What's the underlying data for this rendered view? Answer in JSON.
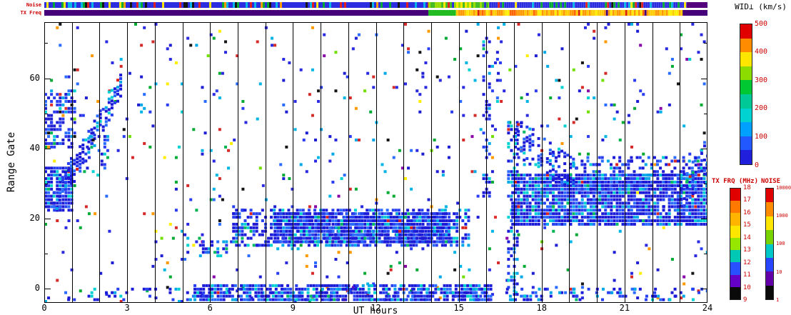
{
  "figure": {
    "labels": {
      "noise_strip": "Noise",
      "txfreq_strip": "TX Freq",
      "xlabel": "UT hours",
      "ylabel": "Range Gate",
      "wid_title": "WID⊥ (km/s)",
      "txfrq_title": "TX FRQ (MHz)",
      "noise_title": "NOISE"
    },
    "colors": {
      "annotation_red": "#cc0000",
      "axis_black": "#000000",
      "background": "#ffffff"
    }
  },
  "chart_data": {
    "type": "heatmap",
    "title": "",
    "xlabel": "UT hours",
    "ylabel": "Range Gate",
    "xlim": [
      0,
      24
    ],
    "ylim": [
      -4,
      76
    ],
    "x_ticks": [
      0,
      3,
      6,
      9,
      12,
      15,
      18,
      21,
      24
    ],
    "y_ticks": [
      0,
      20,
      40,
      60
    ],
    "gridlines_every_hour": true,
    "legend_position": "right",
    "seed": 987654,
    "palettes": {
      "data_blue": [
        [
          "#1e1ed2",
          5
        ],
        [
          "#2b3df0",
          3
        ],
        [
          "#2a6cff",
          2
        ],
        [
          "#00a8e8",
          1.2
        ],
        [
          "#00d2d2",
          0.8
        ],
        [
          "#00b450",
          0.35
        ],
        [
          "#e03030",
          0.3
        ],
        [
          "#ff9900",
          0.2
        ],
        [
          "#ffee00",
          0.15
        ],
        [
          "#151515",
          0.2
        ]
      ],
      "band_blue": [
        [
          "#1c1cd8",
          6
        ],
        [
          "#2740f0",
          3
        ],
        [
          "#2a6cff",
          1.5
        ],
        [
          "#00a8e8",
          1.2
        ],
        [
          "#00d2d2",
          0.9
        ],
        [
          "#00bb66",
          0.2
        ],
        [
          "#dd2222",
          0.12
        ]
      ],
      "noise_mix": [
        [
          "#2a2ae0",
          2.5
        ],
        [
          "#00b4e6",
          1.2
        ],
        [
          "#00aa33",
          1.1
        ],
        [
          "#d42a2a",
          1.1
        ],
        [
          "#ff9900",
          0.5
        ],
        [
          "#ffee00",
          0.45
        ],
        [
          "#151515",
          0.6
        ],
        [
          "#8800aa",
          0.3
        ],
        [
          "#70e000",
          0.4
        ]
      ]
    },
    "features": [
      {
        "kind": "cloud",
        "x": [
          0,
          24
        ],
        "g": [
          -4,
          76
        ],
        "density": 0.022,
        "palette": "noise_mix"
      },
      {
        "kind": "cloud",
        "x": [
          0,
          24
        ],
        "g": [
          -4,
          76
        ],
        "density": 0.012,
        "palette": "data_blue"
      },
      {
        "kind": "cloud",
        "x": [
          0.2,
          24
        ],
        "g": [
          -3.5,
          0.5
        ],
        "density": 0.18,
        "palette": "band_blue"
      },
      {
        "kind": "cloud",
        "x": [
          5.4,
          16.2
        ],
        "g": [
          -3.5,
          1
        ],
        "density": 0.75,
        "palette": "band_blue"
      },
      {
        "kind": "cloud",
        "x": [
          16.5,
          24
        ],
        "g": [
          -3.5,
          0
        ],
        "density": 0.15,
        "palette": "band_blue"
      },
      {
        "kind": "cloud",
        "x": [
          5.6,
          6.65
        ],
        "g": [
          9,
          14
        ],
        "density": 0.5,
        "palette": "band_blue"
      },
      {
        "kind": "cloud",
        "x": [
          6.8,
          15.35
        ],
        "g": [
          12,
          23
        ],
        "density": 0.55,
        "palette": "band_blue"
      },
      {
        "kind": "cloud",
        "x": [
          8.3,
          14.7
        ],
        "g": [
          13,
          22
        ],
        "density": 0.92,
        "palette": "band_blue"
      },
      {
        "kind": "cloud",
        "x": [
          6.8,
          7.3
        ],
        "g": [
          16,
          24
        ],
        "density": 0.5,
        "palette": "band_blue"
      },
      {
        "kind": "cloud",
        "x": [
          0,
          1.15
        ],
        "g": [
          40,
          57
        ],
        "density": 0.5,
        "palette": "data_blue"
      },
      {
        "kind": "cloud",
        "x": [
          0,
          1.05
        ],
        "g": [
          22,
          35
        ],
        "density": 0.85,
        "palette": "band_blue"
      },
      {
        "kind": "band",
        "p0": [
          0.3,
          24
        ],
        "p1": [
          2.75,
          58
        ],
        "hw": 4,
        "density": 0.8,
        "palette": "band_blue"
      },
      {
        "kind": "cloud",
        "x": [
          1.3,
          2.3
        ],
        "g": [
          33,
          45
        ],
        "density": 0.2,
        "palette": "data_blue"
      },
      {
        "kind": "cloud",
        "x": [
          15.85,
          16.15
        ],
        "g": [
          26,
          72
        ],
        "density": 0.3,
        "palette": "band_blue"
      },
      {
        "kind": "cloud",
        "x": [
          16.35,
          16.5
        ],
        "g": [
          50,
          68
        ],
        "density": 0.25,
        "palette": "data_blue"
      },
      {
        "kind": "cloud",
        "x": [
          16.75,
          17.1
        ],
        "g": [
          -2,
          48
        ],
        "density": 0.45,
        "palette": "band_blue"
      },
      {
        "kind": "cloud",
        "x": [
          16.9,
          24
        ],
        "g": [
          18,
          33
        ],
        "density": 0.88,
        "palette": "band_blue"
      },
      {
        "kind": "band",
        "p0": [
          17.0,
          43
        ],
        "p1": [
          19.2,
          31
        ],
        "hw": 5,
        "density": 0.55,
        "palette": "band_blue"
      },
      {
        "kind": "cloud",
        "x": [
          19.2,
          24
        ],
        "g": [
          28,
          38
        ],
        "density": 0.35,
        "palette": "band_blue"
      },
      {
        "kind": "band",
        "p0": [
          22.9,
          26
        ],
        "p1": [
          24,
          38
        ],
        "hw": 5,
        "density": 0.5,
        "palette": "band_blue"
      }
    ],
    "strips": {
      "noise": {
        "segments": [
          {
            "x": [
              0,
              13.9
            ],
            "type": "speckle",
            "colors": [
              [
                "#2d2de0",
                8
              ],
              [
                "#00b4e6",
                0.8
              ],
              [
                "#00aa33",
                0.7
              ],
              [
                "#ffe600",
                0.5
              ],
              [
                "#e02020",
                0.6
              ],
              [
                "#151515",
                0.5
              ],
              [
                "#ff9900",
                0.3
              ]
            ]
          },
          {
            "x": [
              13.9,
              16.1
            ],
            "type": "speckle",
            "colors": [
              [
                "#44bb22",
                4
              ],
              [
                "#99dd00",
                2
              ],
              [
                "#ffe600",
                1.5
              ],
              [
                "#2d2de0",
                1
              ],
              [
                "#e02020",
                0.4
              ]
            ]
          },
          {
            "x": [
              16.1,
              23.25
            ],
            "type": "speckle",
            "colors": [
              [
                "#2d2de0",
                8
              ],
              [
                "#00b4e6",
                0.8
              ],
              [
                "#00aa33",
                0.7
              ],
              [
                "#ffe600",
                0.5
              ],
              [
                "#e02020",
                0.6
              ],
              [
                "#151515",
                0.5
              ],
              [
                "#ff9900",
                0.3
              ]
            ]
          },
          {
            "x": [
              23.25,
              24
            ],
            "type": "solid",
            "color": "#55007d"
          }
        ]
      },
      "txfreq": {
        "segments": [
          {
            "x": [
              0,
              13.9
            ],
            "type": "solid",
            "color": "#45007a"
          },
          {
            "x": [
              13.9,
              14.9
            ],
            "type": "solid",
            "color": "#22bb22"
          },
          {
            "x": [
              14.9,
              23.1
            ],
            "type": "speckle",
            "colors": [
              [
                "#ff9900",
                3
              ],
              [
                "#ffcc00",
                2.5
              ],
              [
                "#ffee00",
                1.5
              ],
              [
                "#ff6600",
                1
              ],
              [
                "#dd2200",
                0.4
              ],
              [
                "#45007a",
                0.3
              ]
            ]
          },
          {
            "x": [
              23.1,
              24
            ],
            "type": "solid",
            "color": "#45007a"
          }
        ]
      }
    },
    "colorbars": {
      "wid": {
        "id": "wid",
        "title": "WID⊥ (km/s)",
        "ticks_top_to_bottom": [
          500,
          400,
          300,
          200,
          100,
          0
        ],
        "segments_top_to_bottom": [
          "#e00000",
          "#ff8c00",
          "#ffe600",
          "#8cdc00",
          "#00c832",
          "#00c896",
          "#00d2d2",
          "#00a0ff",
          "#2258ff",
          "#2020dc"
        ]
      },
      "txfrq": {
        "id": "txfrq",
        "title": "TX FRQ (MHz)",
        "ticks_top_to_bottom": [
          18,
          17,
          16,
          15,
          14,
          13,
          12,
          11,
          10,
          9
        ],
        "segments_top_to_bottom": [
          "#e00000",
          "#ff7800",
          "#ffb400",
          "#ffe600",
          "#96e600",
          "#00c8b4",
          "#2850ff",
          "#6400c8",
          "#0a0a0a"
        ]
      },
      "noise": {
        "id": "noise",
        "title": "NOISE",
        "ticks_top_to_bottom": [
          10000,
          1000,
          100,
          10,
          1
        ],
        "segments_top_to_bottom": [
          "#e00000",
          "#ff8c00",
          "#ffe600",
          "#78d200",
          "#00c8c8",
          "#2846ff",
          "#6400aa",
          "#0a0a0a"
        ]
      }
    }
  }
}
